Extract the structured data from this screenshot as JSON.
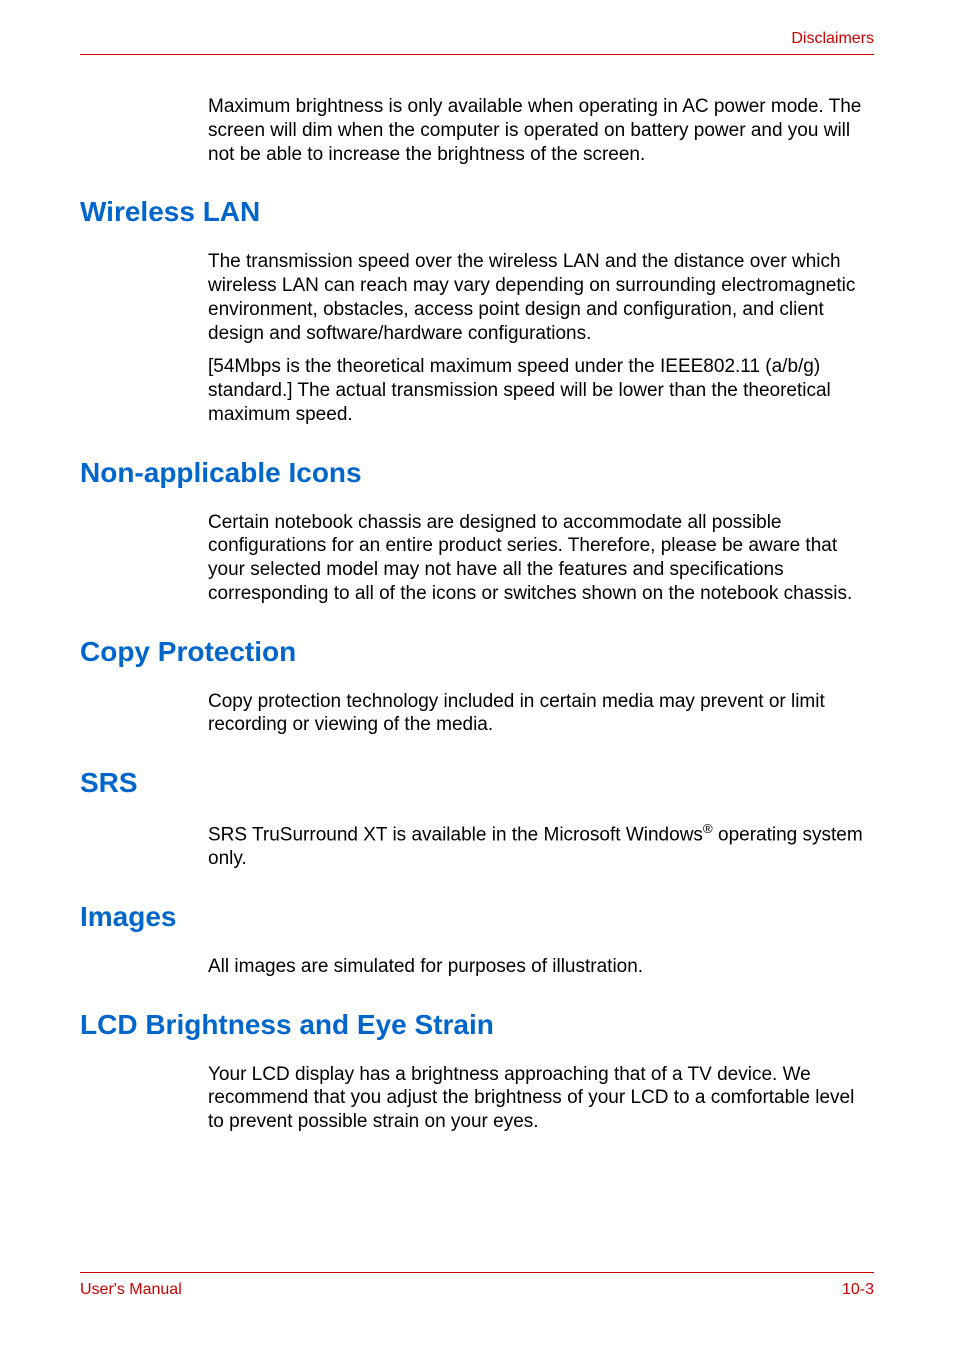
{
  "header": {
    "label": "Disclaimers",
    "color": "#cc0000"
  },
  "intro_para": "Maximum brightness is only available when operating in AC power mode. The screen will dim when the computer is operated on battery power and you will not be able to increase the brightness of the screen.",
  "sections": [
    {
      "heading": "Wireless LAN",
      "paragraphs": [
        "The transmission speed over the wireless LAN and the distance over which wireless LAN can reach may vary depending on surrounding electromagnetic environment, obstacles, access point design and configuration, and client design and software/hardware configurations.",
        "[54Mbps is the theoretical maximum speed under the IEEE802.11 (a/b/g) standard.] The actual transmission speed will be lower than the theoretical maximum speed."
      ]
    },
    {
      "heading": "Non-applicable Icons",
      "paragraphs": [
        "Certain notebook chassis are designed to accommodate all possible configurations for an entire product series. Therefore, please be aware that your selected model may not have all the features and specifications corresponding to all of the icons or switches shown on the notebook chassis."
      ]
    },
    {
      "heading": "Copy Protection",
      "paragraphs": [
        "Copy protection technology included in certain media may prevent or limit recording or viewing of the media."
      ]
    },
    {
      "heading": "SRS",
      "paragraphs_html": [
        "SRS TruSurround XT is available in the Microsoft Windows<sup>®</sup> operating system only."
      ]
    },
    {
      "heading": "Images",
      "paragraphs": [
        "All images are simulated for purposes of illustration."
      ]
    },
    {
      "heading": "LCD Brightness and Eye Strain",
      "paragraphs": [
        "Your LCD display has a brightness approaching that of a TV device. We recommend that you adjust the brightness of your LCD to a comfortable level to prevent possible strain on your eyes."
      ]
    }
  ],
  "footer": {
    "left": "User's Manual",
    "right": "10-3",
    "color": "#cc0000"
  },
  "typography": {
    "heading_color": "#0066cc",
    "heading_fontsize": 28,
    "body_fontsize": 19,
    "body_color": "#000000",
    "background_color": "#ffffff"
  }
}
